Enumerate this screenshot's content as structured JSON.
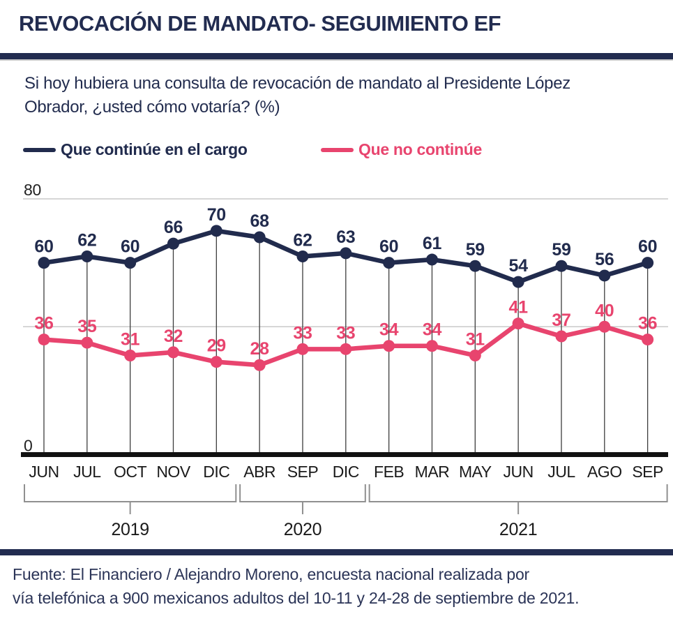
{
  "header": {
    "title": "REVOCACIÓN DE MANDATO- SEGUIMIENTO EF"
  },
  "subtitle": {
    "line1": "Si hoy hubiera una consulta de revocación de mandato al Presidente López",
    "line2": "Obrador, ¿usted cómo votaría?  (%)"
  },
  "legend": [
    {
      "label": "Que continúe en el cargo",
      "color": "#212b4d"
    },
    {
      "label": "Que no continúe",
      "color": "#e8446e"
    }
  ],
  "chart_data": {
    "type": "line",
    "categories": [
      "JUN",
      "JUL",
      "OCT",
      "NOV",
      "DIC",
      "ABR",
      "SEP",
      "DIC",
      "FEB",
      "MAR",
      "MAY",
      "JUN",
      "JUL",
      "AGO",
      "SEP"
    ],
    "series": [
      {
        "name": "Que continúe en el cargo",
        "color": "#212b4d",
        "values": [
          60,
          62,
          60,
          66,
          70,
          68,
          62,
          63,
          60,
          61,
          59,
          54,
          59,
          56,
          60
        ]
      },
      {
        "name": "Que no continúe",
        "color": "#e8446e",
        "values": [
          36,
          35,
          31,
          32,
          29,
          28,
          33,
          33,
          34,
          34,
          31,
          41,
          37,
          40,
          36
        ]
      }
    ],
    "ylim": [
      0,
      80
    ],
    "y_ticks": [
      {
        "value": 80,
        "label": "80"
      },
      {
        "value": 0,
        "label": "0"
      }
    ],
    "y_gridlines": [
      80,
      40
    ],
    "year_groups": [
      {
        "label": "2019",
        "from": 0,
        "to": 4
      },
      {
        "label": "2020",
        "from": 5,
        "to": 7
      },
      {
        "label": "2021",
        "from": 8,
        "to": 14
      }
    ],
    "grid": "horizontal-partial",
    "legend_position": "top",
    "data_labels": true
  },
  "source": {
    "line1": "Fuente: El Financiero / Alejandro Moreno, encuesta nacional realizada por",
    "line2": "vía telefónica a 900 mexicanos adultos del 10-11 y 24-28 de septiembre de 2021."
  }
}
